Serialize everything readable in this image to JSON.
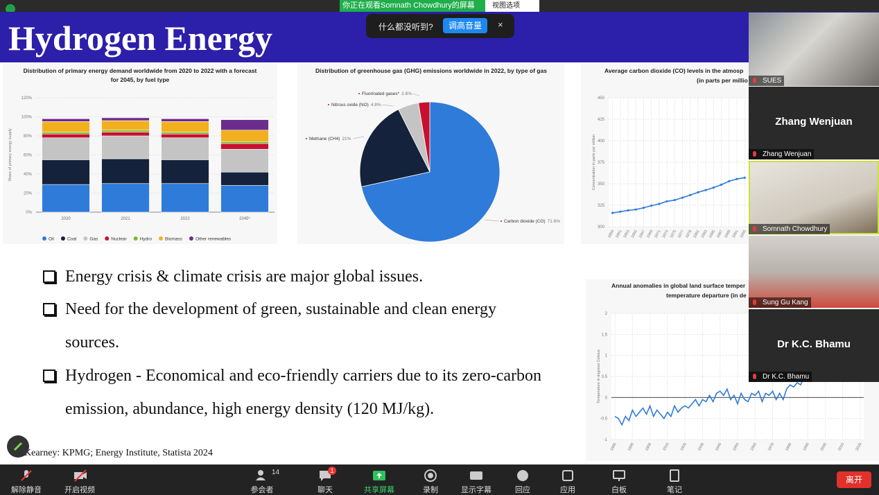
{
  "meeting_bar": {
    "sharing_notice": "你正在观看Somnath  Chowdhury的屏幕",
    "view_options": "视图选项",
    "audio_prompt": "什么都没听到?",
    "audio_button": "调高音量"
  },
  "slide": {
    "title": "Hydrogen Energy",
    "bullets": [
      "Energy crisis & climate crisis are major global issues.",
      "Need for the development of green, sustainable and clean energy sources.",
      "Hydrogen -  Economical and eco-friendly carriers due to its zero-carbon emission, abundance, high energy density (120 MJ/kg)."
    ],
    "reference": "Kearney: KPMG; Energy Institute, Statista 2024"
  },
  "charts": [
    {
      "type": "bar",
      "stacked": true,
      "title": [
        "Distribution of primary energy demand worldwide from 2020 to 2022 with a forecast",
        "for 2045, by fuel type"
      ],
      "y_label": "Share of primary energy supply",
      "categories": [
        "2020",
        "2021",
        "2022",
        "2045*"
      ],
      "series": [
        {
          "name": "Oil",
          "color": "#2f7bd9",
          "values": [
            29,
            30,
            30,
            28
          ]
        },
        {
          "name": "Coal",
          "color": "#14233b",
          "values": [
            26,
            26,
            25,
            14
          ]
        },
        {
          "name": "Gas",
          "color": "#c4c4c4",
          "values": [
            23,
            24,
            23,
            24
          ]
        },
        {
          "name": "Nuclear",
          "color": "#c8102e",
          "values": [
            4,
            4,
            4,
            6
          ]
        },
        {
          "name": "Hydro",
          "color": "#7cb82f",
          "values": [
            2,
            2,
            2,
            2
          ]
        },
        {
          "name": "Biomass",
          "color": "#f2b01e",
          "values": [
            11,
            10,
            11,
            12
          ]
        },
        {
          "name": "Other renewables",
          "color": "#6b2d8c",
          "values": [
            3,
            3,
            3,
            11
          ]
        }
      ],
      "ylim": [
        0,
        120
      ],
      "yticks": [
        {
          "value": 0,
          "label": "0%"
        },
        {
          "value": 20,
          "label": "20%"
        },
        {
          "value": 40,
          "label": "40%"
        },
        {
          "value": 60,
          "label": "60%"
        },
        {
          "value": 80,
          "label": "80%"
        },
        {
          "value": 100,
          "label": "100%"
        },
        {
          "value": 120,
          "label": "120%"
        }
      ],
      "grid": true,
      "legend": "bottom"
    },
    {
      "type": "pie",
      "title": [
        "Distribution of greenhouse gas (GHG) emissions worldwide in 2022, by type of gas"
      ],
      "categories": [
        "Carbon dioxide (CO)",
        "Methane (CH4)",
        "Nitrous oxide (NO)",
        "Fluorinated gases*"
      ],
      "values": [
        71.6,
        21,
        4.8,
        2.6
      ],
      "value_labels": [
        "71.6%",
        "21%",
        "4.8%",
        "2.6%"
      ],
      "colors": [
        "#2f7bd9",
        "#14233b",
        "#c4c4c4",
        "#c8102e"
      ]
    },
    {
      "type": "line",
      "title": [
        "Average carbon dioxide (CO) levels in the atmosp",
        "(in parts per millio"
      ],
      "y_label": "Concentration in parts per million",
      "x": [
        1959,
        1961,
        1963,
        1965,
        1967,
        1969,
        1971,
        1973,
        1975,
        1977,
        1979,
        1981,
        1983,
        1985,
        1987,
        1989,
        1991,
        1993
      ],
      "series": [
        {
          "color": "#2f7bd9",
          "values": [
            316,
            317.5,
            319,
            320,
            322,
            324.5,
            326.5,
            329.5,
            331,
            333.8,
            336.8,
            340,
            342.6,
            345.5,
            348.9,
            352.9,
            355.5,
            357
          ]
        }
      ],
      "xlim": [
        1958,
        2024
      ],
      "xticks": [
        1959,
        1961,
        1963,
        1965,
        1967,
        1969,
        1971,
        1973,
        1975,
        1977,
        1979,
        1981,
        1983,
        1985,
        1987,
        1989,
        1991,
        1993
      ],
      "ylim": [
        300,
        450
      ],
      "yticks": [
        300,
        325,
        350,
        375,
        400,
        425,
        450
      ],
      "grid": true,
      "markers": true
    },
    {
      "type": "line",
      "title": [
        "Annual anomalies in global land surface temper",
        "temperature departure (in de"
      ],
      "y_label": "Temperature in degrees Celsius",
      "x": [
        1880,
        1882,
        1884,
        1886,
        1888,
        1890,
        1892,
        1894,
        1896,
        1898,
        1900,
        1902,
        1904,
        1906,
        1908,
        1910,
        1912,
        1914,
        1916,
        1918,
        1920,
        1922,
        1924,
        1926,
        1928,
        1930,
        1932,
        1934,
        1936,
        1938,
        1940,
        1942,
        1944,
        1946,
        1948,
        1950,
        1952,
        1954,
        1956,
        1958,
        1960,
        1962,
        1964,
        1966,
        1968,
        1970,
        1972,
        1974,
        1976,
        1978,
        1980,
        1982,
        1984,
        1986,
        1988,
        1990
      ],
      "series": [
        {
          "color": "#2f7bd9",
          "values": [
            -0.45,
            -0.5,
            -0.65,
            -0.45,
            -0.55,
            -0.3,
            -0.45,
            -0.35,
            -0.25,
            -0.4,
            -0.2,
            -0.45,
            -0.3,
            -0.4,
            -0.5,
            -0.35,
            -0.45,
            -0.2,
            -0.35,
            -0.25,
            -0.2,
            -0.25,
            -0.15,
            -0.05,
            -0.2,
            -0.05,
            -0.1,
            0.05,
            -0.1,
            0.1,
            0.15,
            0.05,
            0.2,
            -0.05,
            0.05,
            -0.15,
            0.1,
            -0.05,
            -0.1,
            0.1,
            0.05,
            0.15,
            -0.1,
            0.1,
            0.05,
            0.15,
            -0.05,
            0.1,
            -0.05,
            0.2,
            0.3,
            0.25,
            0.35,
            0.3,
            0.5,
            0.55
          ]
        }
      ],
      "xlim": [
        1878,
        2022
      ],
      "xticks": [
        1880,
        1890,
        1900,
        1910,
        1920,
        1930,
        1940,
        1950,
        1960,
        1970,
        1980,
        1990,
        2000,
        2010,
        2020
      ],
      "ylim": [
        -1,
        2
      ],
      "yticks": [
        -1,
        -0.5,
        0,
        0.5,
        1,
        1.5,
        2
      ],
      "grid": true,
      "zero_line": true,
      "markers": false
    }
  ],
  "participants": [
    {
      "label": "SUES",
      "video": true
    },
    {
      "display_name": "Zhang Wenjuan",
      "label": "Zhang Wenjuan",
      "video": false
    },
    {
      "label": "Somnath Chowdhury",
      "video": true,
      "speaking": true
    },
    {
      "label": "Sung Gu Kang",
      "video": true
    },
    {
      "display_name": "Dr K.C. Bhamu",
      "label": "Dr K.C. Bhamu",
      "video": false
    }
  ],
  "toolbar": {
    "items": [
      "解除静音",
      "开启视频",
      "参会者",
      "聊天",
      "共享屏幕",
      "录制",
      "显示字幕",
      "回应",
      "应用",
      "白板",
      "笔记"
    ],
    "participant_count": 14,
    "chat_badge": 1,
    "leave": "离开"
  }
}
